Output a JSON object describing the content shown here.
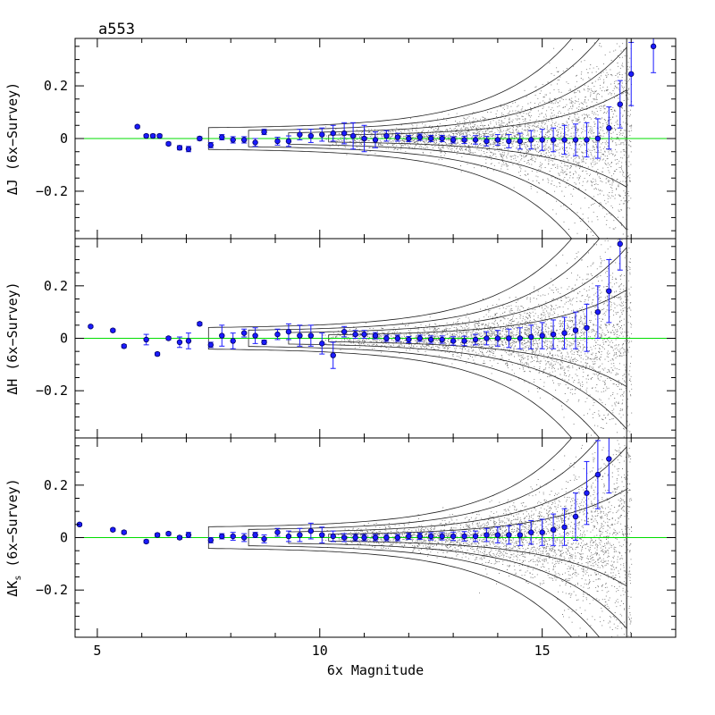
{
  "figure_label": "a553",
  "chart_data": [
    {
      "type": "scatter",
      "panel": "J",
      "ylabel": "ΔJ (6x−Survey)",
      "xlabel": "",
      "xlim": [
        4.5,
        18
      ],
      "ylim": [
        -0.38,
        0.38
      ],
      "xticks": [
        5,
        10,
        15
      ],
      "yticks": [
        -0.2,
        0,
        0.2
      ],
      "ytick_labels": [
        "−0.2",
        "0",
        "0.2"
      ],
      "reference_line": {
        "y": 0,
        "color": "#00dd00"
      },
      "background": "contours and point density of individual stars (grey/black)",
      "series": [
        {
          "color": "#1a1aff",
          "points": [
            [
              5.9,
              0.045,
              0.005
            ],
            [
              6.1,
              0.01,
              0.005
            ],
            [
              6.25,
              0.01,
              0.006
            ],
            [
              6.4,
              0.01,
              0.006
            ],
            [
              6.6,
              -0.02,
              0.006
            ],
            [
              6.85,
              -0.035,
              0.008
            ],
            [
              7.05,
              -0.04,
              0.01
            ],
            [
              7.3,
              0.0,
              0.007
            ],
            [
              7.55,
              -0.025,
              0.01
            ],
            [
              7.8,
              0.005,
              0.01
            ],
            [
              8.05,
              -0.005,
              0.012
            ],
            [
              8.3,
              -0.005,
              0.012
            ],
            [
              8.55,
              -0.015,
              0.015
            ],
            [
              8.75,
              0.025,
              0.01
            ],
            [
              9.05,
              -0.01,
              0.015
            ],
            [
              9.3,
              -0.01,
              0.02
            ],
            [
              9.55,
              0.015,
              0.02
            ],
            [
              9.8,
              0.01,
              0.025
            ],
            [
              10.05,
              0.015,
              0.025
            ],
            [
              10.3,
              0.02,
              0.03
            ],
            [
              10.55,
              0.02,
              0.04
            ],
            [
              10.75,
              0.01,
              0.05
            ],
            [
              11.0,
              0.0,
              0.05
            ],
            [
              11.25,
              -0.005,
              0.03
            ],
            [
              11.5,
              0.01,
              0.02
            ],
            [
              11.75,
              0.005,
              0.015
            ],
            [
              12.0,
              0.0,
              0.012
            ],
            [
              12.25,
              0.005,
              0.012
            ],
            [
              12.5,
              0.0,
              0.012
            ],
            [
              12.75,
              0.0,
              0.012
            ],
            [
              13.0,
              -0.005,
              0.012
            ],
            [
              13.25,
              -0.005,
              0.014
            ],
            [
              13.5,
              -0.005,
              0.016
            ],
            [
              13.75,
              -0.01,
              0.018
            ],
            [
              14.0,
              -0.005,
              0.02
            ],
            [
              14.25,
              -0.01,
              0.025
            ],
            [
              14.5,
              -0.01,
              0.03
            ],
            [
              14.75,
              -0.005,
              0.035
            ],
            [
              15.0,
              -0.005,
              0.04
            ],
            [
              15.25,
              -0.005,
              0.045
            ],
            [
              15.5,
              -0.005,
              0.055
            ],
            [
              15.75,
              -0.005,
              0.06
            ],
            [
              16.0,
              -0.005,
              0.065
            ],
            [
              16.25,
              0.0,
              0.075
            ],
            [
              16.5,
              0.04,
              0.08
            ],
            [
              16.75,
              0.13,
              0.09
            ],
            [
              17.0,
              0.245,
              0.12
            ],
            [
              17.5,
              0.35,
              0.1
            ]
          ]
        }
      ]
    },
    {
      "type": "scatter",
      "panel": "H",
      "ylabel": "ΔH (6x−Survey)",
      "xlabel": "",
      "xlim": [
        4.5,
        18
      ],
      "ylim": [
        -0.38,
        0.38
      ],
      "xticks": [
        5,
        10,
        15
      ],
      "yticks": [
        -0.2,
        0,
        0.2
      ],
      "ytick_labels": [
        "−0.2",
        "0",
        "0.2"
      ],
      "reference_line": {
        "y": 0,
        "color": "#00dd00"
      },
      "series": [
        {
          "color": "#1a1aff",
          "points": [
            [
              4.85,
              0.045,
              0.004
            ],
            [
              5.35,
              0.03,
              0.005
            ],
            [
              5.6,
              -0.03,
              0.006
            ],
            [
              6.1,
              -0.005,
              0.02
            ],
            [
              6.35,
              -0.06,
              0.006
            ],
            [
              6.6,
              0.0,
              0.006
            ],
            [
              6.85,
              -0.015,
              0.02
            ],
            [
              7.05,
              -0.01,
              0.03
            ],
            [
              7.3,
              0.055,
              0.006
            ],
            [
              7.55,
              -0.025,
              0.01
            ],
            [
              7.8,
              0.01,
              0.04
            ],
            [
              8.05,
              -0.01,
              0.03
            ],
            [
              8.3,
              0.02,
              0.015
            ],
            [
              8.55,
              0.01,
              0.03
            ],
            [
              8.75,
              -0.015,
              0.008
            ],
            [
              9.05,
              0.015,
              0.02
            ],
            [
              9.3,
              0.025,
              0.03
            ],
            [
              9.55,
              0.01,
              0.04
            ],
            [
              9.8,
              0.01,
              0.04
            ],
            [
              10.05,
              -0.02,
              0.04
            ],
            [
              10.3,
              -0.065,
              0.05
            ],
            [
              10.55,
              0.025,
              0.02
            ],
            [
              10.8,
              0.015,
              0.015
            ],
            [
              11.0,
              0.015,
              0.015
            ],
            [
              11.25,
              0.01,
              0.012
            ],
            [
              11.5,
              0.0,
              0.012
            ],
            [
              11.75,
              0.0,
              0.012
            ],
            [
              12.0,
              -0.005,
              0.012
            ],
            [
              12.25,
              0.0,
              0.012
            ],
            [
              12.5,
              -0.005,
              0.014
            ],
            [
              12.75,
              -0.005,
              0.014
            ],
            [
              13.0,
              -0.01,
              0.016
            ],
            [
              13.25,
              -0.01,
              0.018
            ],
            [
              13.5,
              -0.005,
              0.02
            ],
            [
              13.75,
              0.0,
              0.025
            ],
            [
              14.0,
              0.0,
              0.03
            ],
            [
              14.25,
              0.0,
              0.035
            ],
            [
              14.5,
              0.0,
              0.04
            ],
            [
              14.75,
              0.005,
              0.045
            ],
            [
              15.0,
              0.01,
              0.05
            ],
            [
              15.25,
              0.015,
              0.055
            ],
            [
              15.5,
              0.02,
              0.06
            ],
            [
              15.75,
              0.03,
              0.07
            ],
            [
              16.0,
              0.04,
              0.09
            ],
            [
              16.25,
              0.1,
              0.1
            ],
            [
              16.5,
              0.18,
              0.12
            ],
            [
              16.75,
              0.36,
              0.1
            ]
          ]
        }
      ]
    },
    {
      "type": "scatter",
      "panel": "Ks",
      "ylabel": "ΔK",
      "ylabel_subscript": "s",
      "ylabel_rest": " (6x−Survey)",
      "xlabel": "6x Magnitude",
      "xlim": [
        4.5,
        18
      ],
      "ylim": [
        -0.38,
        0.38
      ],
      "xticks": [
        5,
        10,
        15
      ],
      "xtick_labels": [
        "5",
        "10",
        "15"
      ],
      "yticks": [
        -0.2,
        0,
        0.2
      ],
      "ytick_labels": [
        "−0.2",
        "0",
        "0.2"
      ],
      "reference_line": {
        "y": 0,
        "color": "#00dd00"
      },
      "series": [
        {
          "color": "#1a1aff",
          "points": [
            [
              4.6,
              0.05,
              0.005
            ],
            [
              5.35,
              0.03,
              0.005
            ],
            [
              5.6,
              0.02,
              0.006
            ],
            [
              6.1,
              -0.015,
              0.006
            ],
            [
              6.35,
              0.01,
              0.006
            ],
            [
              6.6,
              0.015,
              0.006
            ],
            [
              6.85,
              0.0,
              0.006
            ],
            [
              7.05,
              0.01,
              0.01
            ],
            [
              7.55,
              -0.01,
              0.01
            ],
            [
              7.8,
              0.005,
              0.01
            ],
            [
              8.05,
              0.005,
              0.015
            ],
            [
              8.3,
              0.0,
              0.015
            ],
            [
              8.55,
              0.01,
              0.01
            ],
            [
              8.75,
              -0.005,
              0.015
            ],
            [
              9.05,
              0.02,
              0.015
            ],
            [
              9.3,
              0.005,
              0.02
            ],
            [
              9.55,
              0.01,
              0.025
            ],
            [
              9.8,
              0.025,
              0.03
            ],
            [
              10.05,
              0.01,
              0.03
            ],
            [
              10.3,
              0.005,
              0.02
            ],
            [
              10.55,
              0.0,
              0.015
            ],
            [
              10.8,
              0.0,
              0.012
            ],
            [
              11.0,
              0.0,
              0.012
            ],
            [
              11.25,
              0.0,
              0.012
            ],
            [
              11.5,
              0.0,
              0.012
            ],
            [
              11.75,
              0.0,
              0.012
            ],
            [
              12.0,
              0.005,
              0.012
            ],
            [
              12.25,
              0.005,
              0.012
            ],
            [
              12.5,
              0.005,
              0.014
            ],
            [
              12.75,
              0.005,
              0.014
            ],
            [
              13.0,
              0.005,
              0.016
            ],
            [
              13.25,
              0.005,
              0.018
            ],
            [
              13.5,
              0.005,
              0.02
            ],
            [
              13.75,
              0.01,
              0.025
            ],
            [
              14.0,
              0.01,
              0.03
            ],
            [
              14.25,
              0.01,
              0.035
            ],
            [
              14.5,
              0.01,
              0.04
            ],
            [
              14.75,
              0.02,
              0.045
            ],
            [
              15.0,
              0.02,
              0.05
            ],
            [
              15.25,
              0.03,
              0.06
            ],
            [
              15.5,
              0.04,
              0.07
            ],
            [
              15.75,
              0.08,
              0.09
            ],
            [
              16.0,
              0.17,
              0.12
            ],
            [
              16.25,
              0.24,
              0.13
            ],
            [
              16.5,
              0.3,
              0.13
            ]
          ]
        }
      ]
    }
  ]
}
